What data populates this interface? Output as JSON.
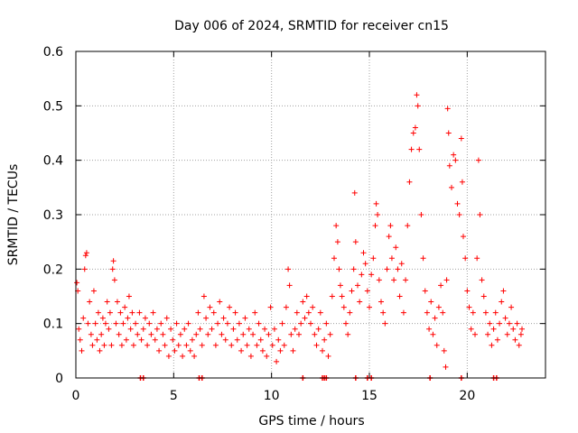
{
  "colors": {
    "series": "#ff0000",
    "grid": "#a0a0a0",
    "axis": "#000000",
    "background": "#ffffff"
  },
  "chart_data": {
    "type": "scatter",
    "title": "Day 006 of 2024, SRMTID for receiver cn15",
    "xlabel": "GPS time / hours",
    "ylabel": "SRMTID / TECUs",
    "xlim": [
      0,
      24
    ],
    "ylim": [
      0,
      0.6
    ],
    "grid": true,
    "marker": "+",
    "x_ticks": [
      0,
      5,
      10,
      15,
      20
    ],
    "x_tick_labels": [
      "0",
      "5",
      "10",
      "15",
      "20"
    ],
    "y_ticks": [
      0,
      0.1,
      0.2,
      0.3,
      0.4,
      0.5,
      0.6
    ],
    "y_tick_labels": [
      "0",
      "0.1",
      "0.2",
      "0.3",
      "0.4",
      "0.5",
      "0.6"
    ],
    "series": [
      {
        "name": "SRMTID",
        "points": [
          [
            0.05,
            0.175
          ],
          [
            0.1,
            0.16
          ],
          [
            0.15,
            0.09
          ],
          [
            0.22,
            0.07
          ],
          [
            0.3,
            0.05
          ],
          [
            0.38,
            0.11
          ],
          [
            0.45,
            0.2
          ],
          [
            0.5,
            0.225
          ],
          [
            0.55,
            0.23
          ],
          [
            0.62,
            0.1
          ],
          [
            0.7,
            0.14
          ],
          [
            0.78,
            0.08
          ],
          [
            0.85,
            0.06
          ],
          [
            0.92,
            0.16
          ],
          [
            1.0,
            0.1
          ],
          [
            1.08,
            0.07
          ],
          [
            1.15,
            0.12
          ],
          [
            1.22,
            0.05
          ],
          [
            1.3,
            0.08
          ],
          [
            1.38,
            0.11
          ],
          [
            1.45,
            0.06
          ],
          [
            1.52,
            0.1
          ],
          [
            1.6,
            0.14
          ],
          [
            1.68,
            0.09
          ],
          [
            1.75,
            0.12
          ],
          [
            1.82,
            0.06
          ],
          [
            1.88,
            0.2
          ],
          [
            1.92,
            0.215
          ],
          [
            1.98,
            0.18
          ],
          [
            2.05,
            0.1
          ],
          [
            2.12,
            0.14
          ],
          [
            2.2,
            0.08
          ],
          [
            2.28,
            0.12
          ],
          [
            2.35,
            0.06
          ],
          [
            2.42,
            0.1
          ],
          [
            2.5,
            0.13
          ],
          [
            2.58,
            0.07
          ],
          [
            2.65,
            0.11
          ],
          [
            2.72,
            0.15
          ],
          [
            2.8,
            0.09
          ],
          [
            2.88,
            0.12
          ],
          [
            2.95,
            0.06
          ],
          [
            3.05,
            0.1
          ],
          [
            3.15,
            0.08
          ],
          [
            3.25,
            0.12
          ],
          [
            3.35,
            0.07
          ],
          [
            3.45,
            0.09
          ],
          [
            3.55,
            0.11
          ],
          [
            3.65,
            0.06
          ],
          [
            3.75,
            0.1
          ],
          [
            3.85,
            0.08
          ],
          [
            3.95,
            0.12
          ],
          [
            4.05,
            0.07
          ],
          [
            4.15,
            0.09
          ],
          [
            4.25,
            0.05
          ],
          [
            4.35,
            0.1
          ],
          [
            4.45,
            0.08
          ],
          [
            4.55,
            0.06
          ],
          [
            4.65,
            0.11
          ],
          [
            4.75,
            0.04
          ],
          [
            4.85,
            0.09
          ],
          [
            4.95,
            0.07
          ],
          [
            5.05,
            0.05
          ],
          [
            5.15,
            0.1
          ],
          [
            5.25,
            0.06
          ],
          [
            5.35,
            0.08
          ],
          [
            5.45,
            0.04
          ],
          [
            5.55,
            0.09
          ],
          [
            5.65,
            0.06
          ],
          [
            5.75,
            0.1
          ],
          [
            5.85,
            0.05
          ],
          [
            5.95,
            0.07
          ],
          [
            6.05,
            0.04
          ],
          [
            6.15,
            0.08
          ],
          [
            6.25,
            0.12
          ],
          [
            6.35,
            0.09
          ],
          [
            6.45,
            0.06
          ],
          [
            6.55,
            0.15
          ],
          [
            6.65,
            0.11
          ],
          [
            6.75,
            0.08
          ],
          [
            6.85,
            0.13
          ],
          [
            6.95,
            0.09
          ],
          [
            7.05,
            0.12
          ],
          [
            7.15,
            0.06
          ],
          [
            7.25,
            0.1
          ],
          [
            7.35,
            0.14
          ],
          [
            7.45,
            0.08
          ],
          [
            7.55,
            0.11
          ],
          [
            7.65,
            0.07
          ],
          [
            7.75,
            0.1
          ],
          [
            7.85,
            0.13
          ],
          [
            7.95,
            0.06
          ],
          [
            8.05,
            0.09
          ],
          [
            8.15,
            0.12
          ],
          [
            8.25,
            0.07
          ],
          [
            8.35,
            0.1
          ],
          [
            8.45,
            0.05
          ],
          [
            8.55,
            0.08
          ],
          [
            8.65,
            0.11
          ],
          [
            8.75,
            0.06
          ],
          [
            8.85,
            0.09
          ],
          [
            8.95,
            0.04
          ],
          [
            9.05,
            0.08
          ],
          [
            9.15,
            0.12
          ],
          [
            9.25,
            0.06
          ],
          [
            9.35,
            0.1
          ],
          [
            9.45,
            0.07
          ],
          [
            9.55,
            0.05
          ],
          [
            9.65,
            0.09
          ],
          [
            9.75,
            0.04
          ],
          [
            9.85,
            0.08
          ],
          [
            9.95,
            0.13
          ],
          [
            10.05,
            0.06
          ],
          [
            10.15,
            0.09
          ],
          [
            10.25,
            0.03
          ],
          [
            10.35,
            0.07
          ],
          [
            10.45,
            0.05
          ],
          [
            10.55,
            0.1
          ],
          [
            10.65,
            0.06
          ],
          [
            10.75,
            0.13
          ],
          [
            10.85,
            0.2
          ],
          [
            10.92,
            0.17
          ],
          [
            11.0,
            0.08
          ],
          [
            11.1,
            0.05
          ],
          [
            11.2,
            0.09
          ],
          [
            11.3,
            0.12
          ],
          [
            11.4,
            0.08
          ],
          [
            11.5,
            0.1
          ],
          [
            11.6,
            0.14
          ],
          [
            11.7,
            0.11
          ],
          [
            11.8,
            0.15
          ],
          [
            11.9,
            0.12
          ],
          [
            12.0,
            0.1
          ],
          [
            12.1,
            0.13
          ],
          [
            12.2,
            0.08
          ],
          [
            12.3,
            0.06
          ],
          [
            12.4,
            0.09
          ],
          [
            12.5,
            0.12
          ],
          [
            12.6,
            0.05
          ],
          [
            12.7,
            0.07
          ],
          [
            12.8,
            0.1
          ],
          [
            12.9,
            0.04
          ],
          [
            13.0,
            0.08
          ],
          [
            13.1,
            0.15
          ],
          [
            13.2,
            0.22
          ],
          [
            13.3,
            0.28
          ],
          [
            13.38,
            0.25
          ],
          [
            13.45,
            0.2
          ],
          [
            13.52,
            0.17
          ],
          [
            13.6,
            0.15
          ],
          [
            13.7,
            0.13
          ],
          [
            13.8,
            0.1
          ],
          [
            13.9,
            0.08
          ],
          [
            14.0,
            0.12
          ],
          [
            14.1,
            0.16
          ],
          [
            14.2,
            0.2
          ],
          [
            14.25,
            0.34
          ],
          [
            14.3,
            0.25
          ],
          [
            14.4,
            0.17
          ],
          [
            14.5,
            0.14
          ],
          [
            14.6,
            0.19
          ],
          [
            14.7,
            0.23
          ],
          [
            14.8,
            0.21
          ],
          [
            14.9,
            0.16
          ],
          [
            15.0,
            0.13
          ],
          [
            15.1,
            0.19
          ],
          [
            15.2,
            0.22
          ],
          [
            15.3,
            0.28
          ],
          [
            15.35,
            0.32
          ],
          [
            15.42,
            0.3
          ],
          [
            15.5,
            0.18
          ],
          [
            15.6,
            0.14
          ],
          [
            15.7,
            0.12
          ],
          [
            15.8,
            0.1
          ],
          [
            15.9,
            0.2
          ],
          [
            16.0,
            0.26
          ],
          [
            16.08,
            0.28
          ],
          [
            16.15,
            0.22
          ],
          [
            16.25,
            0.18
          ],
          [
            16.35,
            0.24
          ],
          [
            16.45,
            0.2
          ],
          [
            16.55,
            0.15
          ],
          [
            16.65,
            0.21
          ],
          [
            16.75,
            0.12
          ],
          [
            16.85,
            0.18
          ],
          [
            16.95,
            0.28
          ],
          [
            17.05,
            0.36
          ],
          [
            17.15,
            0.42
          ],
          [
            17.25,
            0.45
          ],
          [
            17.35,
            0.46
          ],
          [
            17.42,
            0.52
          ],
          [
            17.48,
            0.5
          ],
          [
            17.55,
            0.42
          ],
          [
            17.65,
            0.3
          ],
          [
            17.75,
            0.22
          ],
          [
            17.85,
            0.16
          ],
          [
            17.95,
            0.12
          ],
          [
            18.05,
            0.09
          ],
          [
            18.15,
            0.14
          ],
          [
            18.25,
            0.08
          ],
          [
            18.35,
            0.11
          ],
          [
            18.45,
            0.06
          ],
          [
            18.55,
            0.13
          ],
          [
            18.65,
            0.17
          ],
          [
            18.75,
            0.12
          ],
          [
            18.82,
            0.05
          ],
          [
            18.9,
            0.02
          ],
          [
            18.95,
            0.18
          ],
          [
            19.0,
            0.495
          ],
          [
            19.05,
            0.45
          ],
          [
            19.1,
            0.39
          ],
          [
            19.2,
            0.35
          ],
          [
            19.3,
            0.41
          ],
          [
            19.4,
            0.4
          ],
          [
            19.5,
            0.32
          ],
          [
            19.6,
            0.3
          ],
          [
            19.7,
            0.44
          ],
          [
            19.75,
            0.36
          ],
          [
            19.8,
            0.26
          ],
          [
            19.9,
            0.22
          ],
          [
            20.0,
            0.16
          ],
          [
            20.1,
            0.13
          ],
          [
            20.2,
            0.09
          ],
          [
            20.3,
            0.12
          ],
          [
            20.4,
            0.08
          ],
          [
            20.5,
            0.22
          ],
          [
            20.58,
            0.4
          ],
          [
            20.65,
            0.3
          ],
          [
            20.75,
            0.18
          ],
          [
            20.85,
            0.15
          ],
          [
            20.95,
            0.12
          ],
          [
            21.05,
            0.08
          ],
          [
            21.15,
            0.1
          ],
          [
            21.25,
            0.06
          ],
          [
            21.35,
            0.09
          ],
          [
            21.45,
            0.12
          ],
          [
            21.55,
            0.07
          ],
          [
            21.65,
            0.1
          ],
          [
            21.75,
            0.14
          ],
          [
            21.85,
            0.16
          ],
          [
            21.95,
            0.11
          ],
          [
            22.05,
            0.08
          ],
          [
            22.15,
            0.1
          ],
          [
            22.25,
            0.13
          ],
          [
            22.35,
            0.09
          ],
          [
            22.45,
            0.07
          ],
          [
            22.55,
            0.1
          ],
          [
            22.65,
            0.06
          ],
          [
            22.75,
            0.08
          ],
          [
            22.8,
            0.09
          ]
        ]
      }
    ],
    "zero_markers_x": [
      3.3,
      3.45,
      6.3,
      6.45,
      11.6,
      12.6,
      12.7,
      12.8,
      14.3,
      14.9,
      15.1,
      18.1,
      19.7,
      21.35,
      21.5
    ]
  }
}
